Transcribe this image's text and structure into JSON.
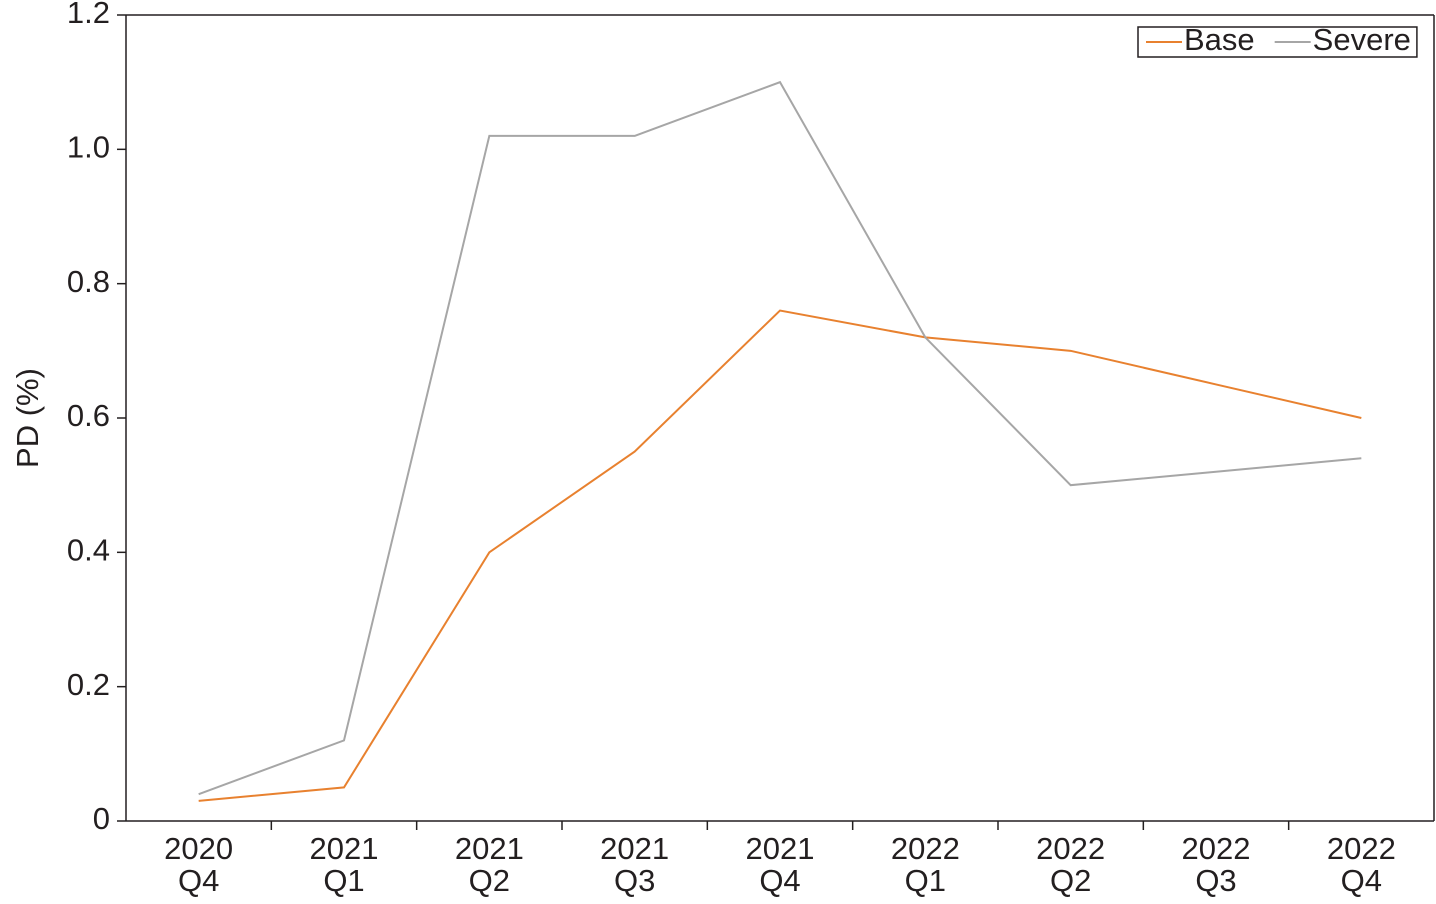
{
  "chart_data": {
    "type": "line",
    "y_label": "PD (%)",
    "categories": [
      "2020\nQ4",
      "2021\nQ1",
      "2021\nQ2",
      "2021\nQ3",
      "2021\nQ4",
      "2022\nQ1",
      "2022\nQ2",
      "2022\nQ3",
      "2022\nQ4"
    ],
    "series": [
      {
        "name": "Base",
        "color": "#e8812f",
        "values": [
          0.03,
          0.05,
          0.4,
          0.55,
          0.76,
          0.72,
          0.7,
          0.65,
          0.6
        ]
      },
      {
        "name": "Severe",
        "color": "#a6a6a6",
        "values": [
          0.04,
          0.12,
          1.02,
          1.02,
          1.1,
          0.72,
          0.5,
          0.52,
          0.54
        ]
      }
    ],
    "ylim": [
      0,
      1.2
    ],
    "yticks": [
      0,
      0.2,
      0.4,
      0.6,
      0.8,
      {
        "value": 1,
        "label": "1.0"
      },
      1.2
    ],
    "legend": "upper right"
  }
}
